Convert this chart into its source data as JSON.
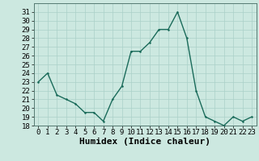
{
  "x": [
    0,
    1,
    2,
    3,
    4,
    5,
    6,
    7,
    8,
    9,
    10,
    11,
    12,
    13,
    14,
    15,
    16,
    17,
    18,
    19,
    20,
    21,
    22,
    23
  ],
  "y": [
    23,
    24,
    21.5,
    21,
    20.5,
    19.5,
    19.5,
    18.5,
    21,
    22.5,
    26.5,
    26.5,
    27.5,
    29,
    29,
    31,
    28,
    22,
    19,
    18.5,
    18,
    19,
    18.5,
    19
  ],
  "line_color": "#1a6b5a",
  "marker_color": "#1a6b5a",
  "bg_color": "#cce8e0",
  "grid_color": "#aad0c8",
  "xlabel": "Humidex (Indice chaleur)",
  "ylim": [
    18,
    32
  ],
  "xlim": [
    -0.5,
    23.5
  ],
  "yticks": [
    18,
    19,
    20,
    21,
    22,
    23,
    24,
    25,
    26,
    27,
    28,
    29,
    30,
    31
  ],
  "xticks": [
    0,
    1,
    2,
    3,
    4,
    5,
    6,
    7,
    8,
    9,
    10,
    11,
    12,
    13,
    14,
    15,
    16,
    17,
    18,
    19,
    20,
    21,
    22,
    23
  ],
  "xlabel_fontsize": 8,
  "tick_fontsize": 6.5,
  "line_width": 1.0,
  "marker_size": 2.5
}
